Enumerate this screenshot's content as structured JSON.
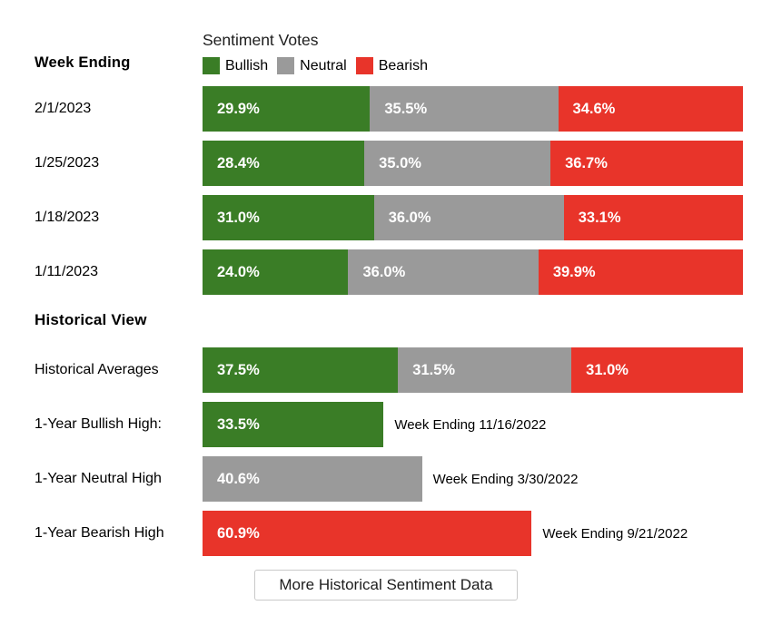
{
  "colors": {
    "bullish": "#3a7d26",
    "neutral": "#9a9a9a",
    "bearish": "#e8342a"
  },
  "header": {
    "week_ending_label": "Week Ending",
    "chart_title": "Sentiment Votes",
    "legend": [
      {
        "label": "Bullish",
        "series": "bullish"
      },
      {
        "label": "Neutral",
        "series": "neutral"
      },
      {
        "label": "Bearish",
        "series": "bearish"
      }
    ]
  },
  "weekly_rows": [
    {
      "week": "2/1/2023",
      "bullish": "29.9%",
      "neutral": "35.5%",
      "bearish": "34.6%"
    },
    {
      "week": "1/25/2023",
      "bullish": "28.4%",
      "neutral": "35.0%",
      "bearish": "36.7%"
    },
    {
      "week": "1/18/2023",
      "bullish": "31.0%",
      "neutral": "36.0%",
      "bearish": "33.1%"
    },
    {
      "week": "1/11/2023",
      "bullish": "24.0%",
      "neutral": "36.0%",
      "bearish": "39.9%"
    }
  ],
  "historical": {
    "section_title": "Historical View",
    "averages_row": {
      "label": "Historical Averages",
      "bullish": "37.5%",
      "neutral": "31.5%",
      "bearish": "31.0%"
    },
    "high_rows": [
      {
        "label": "1-Year Bullish High:",
        "value": "33.5%",
        "series": "bullish",
        "note": "Week Ending 11/16/2022"
      },
      {
        "label": "1-Year Neutral High",
        "value": "40.6%",
        "series": "neutral",
        "note": "Week Ending 3/30/2022"
      },
      {
        "label": "1-Year Bearish High",
        "value": "60.9%",
        "series": "bearish",
        "note": "Week Ending 9/21/2022"
      }
    ]
  },
  "footer": {
    "button_label": "More Historical Sentiment Data"
  },
  "chart_data": {
    "type": "bar",
    "subtype": "horizontal-stacked",
    "title": "Sentiment Votes",
    "legend_position": "top",
    "legend_entries": [
      "Bullish",
      "Neutral",
      "Bearish"
    ],
    "unit": "percent",
    "xlim": [
      0,
      100
    ],
    "grid": false,
    "categories": [
      "2/1/2023",
      "1/25/2023",
      "1/18/2023",
      "1/11/2023",
      "Historical Averages"
    ],
    "series": [
      {
        "name": "Bullish",
        "color": "#3a7d26",
        "values": [
          29.9,
          28.4,
          31.0,
          24.0,
          37.5
        ]
      },
      {
        "name": "Neutral",
        "color": "#9a9a9a",
        "values": [
          35.5,
          35.0,
          36.0,
          36.0,
          31.5
        ]
      },
      {
        "name": "Bearish",
        "color": "#e8342a",
        "values": [
          34.6,
          36.7,
          33.1,
          39.9,
          31.0
        ]
      }
    ],
    "annotated_bars": [
      {
        "label": "1-Year Bullish High:",
        "series": "Bullish",
        "value": 33.5,
        "annotation": "Week Ending 11/16/2022"
      },
      {
        "label": "1-Year Neutral High",
        "series": "Neutral",
        "value": 40.6,
        "annotation": "Week Ending 3/30/2022"
      },
      {
        "label": "1-Year Bearish High",
        "series": "Bearish",
        "value": 60.9,
        "annotation": "Week Ending 9/21/2022"
      }
    ]
  }
}
